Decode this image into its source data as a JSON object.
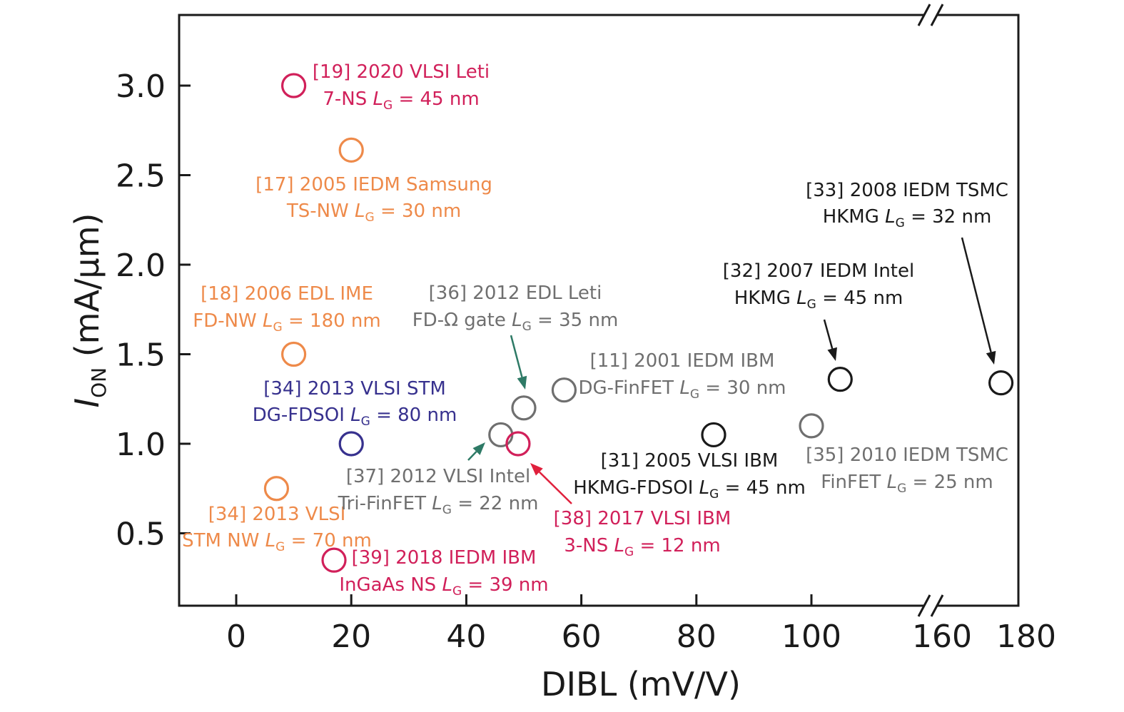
{
  "chart_data": {
    "type": "scatter",
    "xlabel": "DIBL (mV/V)",
    "ylabel": {
      "main": "I",
      "sub": "ON",
      "unit": " (mA/μm)"
    },
    "x_ticks": [
      "0",
      "20",
      "40",
      "60",
      "80",
      "100",
      "160",
      "180"
    ],
    "y_ticks": [
      "0.5",
      "1.0",
      "1.5",
      "2.0",
      "2.5",
      "3.0"
    ],
    "xlim": [
      -10,
      180
    ],
    "x_break": [
      110,
      160
    ],
    "ylim": [
      0.1,
      3.4
    ],
    "grid": false,
    "legend": "none",
    "colors": {
      "crimson": "#d1205a",
      "orange": "#ee8a4a",
      "navy": "#37318e",
      "gray": "#6f6f6f",
      "black": "#1a1a1a",
      "teal": "#2e7a66",
      "red": "#e0203c"
    },
    "points": [
      {
        "x": 10,
        "y": 3.0,
        "color": "crimson",
        "label": [
          "[19] 2020 VLSI Leti",
          {
            "pre": "7-NS ",
            "L": "L",
            "G": "G",
            "post": " = 45 nm"
          }
        ]
      },
      {
        "x": 20,
        "y": 2.64,
        "color": "orange",
        "label": [
          "[17] 2005 IEDM Samsung",
          {
            "pre": "TS-NW ",
            "L": "L",
            "G": "G",
            "post": " = 30 nm"
          }
        ]
      },
      {
        "x": 10,
        "y": 1.5,
        "color": "orange",
        "label": [
          "[18] 2006 EDL IME",
          {
            "pre": "FD-NW ",
            "L": "L",
            "G": "G",
            "post": " = 180 nm"
          }
        ]
      },
      {
        "x": 20,
        "y": 1.0,
        "color": "navy",
        "label": [
          "[34] 2013 VLSI STM",
          {
            "pre": "DG-FDSOI  ",
            "L": "L",
            "G": "G",
            "post": " = 80 nm"
          }
        ]
      },
      {
        "x": 7,
        "y": 0.75,
        "color": "orange",
        "label": [
          "[34] 2013 VLSI",
          {
            "pre": "STM NW ",
            "L": "L",
            "G": "G",
            "post": " = 70 nm"
          }
        ]
      },
      {
        "x": 17,
        "y": 0.35,
        "color": "crimson",
        "label": [
          "[39] 2018 IEDM IBM",
          {
            "pre": "InGaAs NS ",
            "L": "L",
            "G": "G",
            "post": " = 39 nm"
          }
        ]
      },
      {
        "x": 46,
        "y": 1.05,
        "color": "gray",
        "label": [
          "[37] 2012 VLSI Intel",
          {
            "pre": "Tri-FinFET ",
            "L": "L",
            "G": "G",
            "post": " = 22 nm"
          }
        ]
      },
      {
        "x": 50,
        "y": 1.2,
        "color": "gray",
        "label": [
          "[36] 2012 EDL Leti",
          {
            "pre": "FD-Ω gate ",
            "L": "L",
            "G": "G",
            "post": " = 35 nm"
          }
        ]
      },
      {
        "x": 49,
        "y": 1.0,
        "color": "crimson",
        "label": [
          "[38] 2017 VLSI IBM",
          {
            "pre": "3-NS ",
            "L": "L",
            "G": "G",
            "post": " = 12 nm"
          }
        ]
      },
      {
        "x": 57,
        "y": 1.3,
        "color": "gray",
        "label": [
          "[11] 2001 IEDM  IBM",
          {
            "pre": "DG-FinFET  ",
            "L": "L",
            "G": "G",
            "post": " = 30 nm"
          }
        ]
      },
      {
        "x": 83,
        "y": 1.05,
        "color": "black",
        "label": [
          "[31] 2005 VLSI IBM",
          {
            "pre": "HKMG-FDSOI ",
            "L": "L",
            "G": "G",
            "post": " = 45 nm"
          }
        ]
      },
      {
        "x": 100,
        "y": 1.1,
        "color": "gray",
        "label": [
          "[35] 2010 IEDM TSMC",
          {
            "pre": "FinFET ",
            "L": "L",
            "G": "G",
            "post": " = 25 nm"
          }
        ]
      },
      {
        "x": 105,
        "y": 1.36,
        "color": "black",
        "label": [
          "[32] 2007 IEDM Intel",
          {
            "pre": "HKMG ",
            "L": "L",
            "G": "G",
            "post": " = 45 nm"
          }
        ]
      },
      {
        "x": 174,
        "y": 1.34,
        "color": "black",
        "label": [
          "[33] 2008 IEDM TSMC",
          {
            "pre": "HKMG ",
            "L": "L",
            "G": "G",
            "post": " = 32 nm"
          }
        ]
      }
    ]
  }
}
